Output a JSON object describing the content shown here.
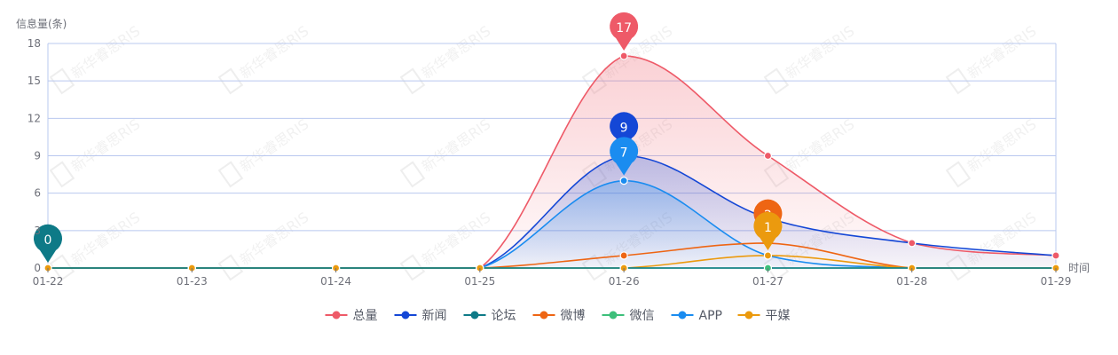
{
  "chart_data": {
    "type": "line",
    "ylabel": "信息量(条)",
    "xlabel": "时间",
    "categories": [
      "01-22",
      "01-23",
      "01-24",
      "01-25",
      "01-26",
      "01-27",
      "01-28",
      "01-29"
    ],
    "ylim": [
      0,
      18
    ],
    "yticks": [
      0,
      3,
      6,
      9,
      12,
      15,
      18
    ],
    "grid": true,
    "smooth": true,
    "legend_position": "bottom",
    "watermark_text": "新华睿思RIS",
    "series": [
      {
        "name": "总量",
        "color": "#ee5a68",
        "area": true,
        "values": [
          0,
          0,
          0,
          0,
          17,
          9,
          2,
          1
        ],
        "pin": {
          "index": 4,
          "label": "17"
        }
      },
      {
        "name": "新闻",
        "color": "#1447d6",
        "area": true,
        "values": [
          0,
          0,
          0,
          0,
          9,
          4,
          2,
          1
        ],
        "pin": {
          "index": 4,
          "label": "9"
        }
      },
      {
        "name": "论坛",
        "color": "#0e7a87",
        "area": false,
        "values": [
          0,
          0,
          0,
          0,
          0,
          0,
          0,
          0
        ],
        "pin": {
          "index": 0,
          "label": "0"
        }
      },
      {
        "name": "微博",
        "color": "#ee6513",
        "area": false,
        "values": [
          0,
          0,
          0,
          0,
          1,
          2,
          0,
          0
        ],
        "pin": {
          "index": 5,
          "label": "2"
        }
      },
      {
        "name": "微信",
        "color": "#3dbf7a",
        "area": false,
        "values": [
          0,
          0,
          0,
          0,
          0,
          0,
          0,
          0
        ]
      },
      {
        "name": "APP",
        "color": "#1a8cf0",
        "area": true,
        "values": [
          0,
          0,
          0,
          0,
          7,
          1,
          0,
          0
        ],
        "pin": {
          "index": 4,
          "label": "7"
        }
      },
      {
        "name": "平媒",
        "color": "#eb9a0e",
        "area": false,
        "values": [
          0,
          0,
          0,
          0,
          0,
          1,
          0,
          0
        ],
        "pin": {
          "index": 5,
          "label": "1"
        }
      }
    ]
  }
}
